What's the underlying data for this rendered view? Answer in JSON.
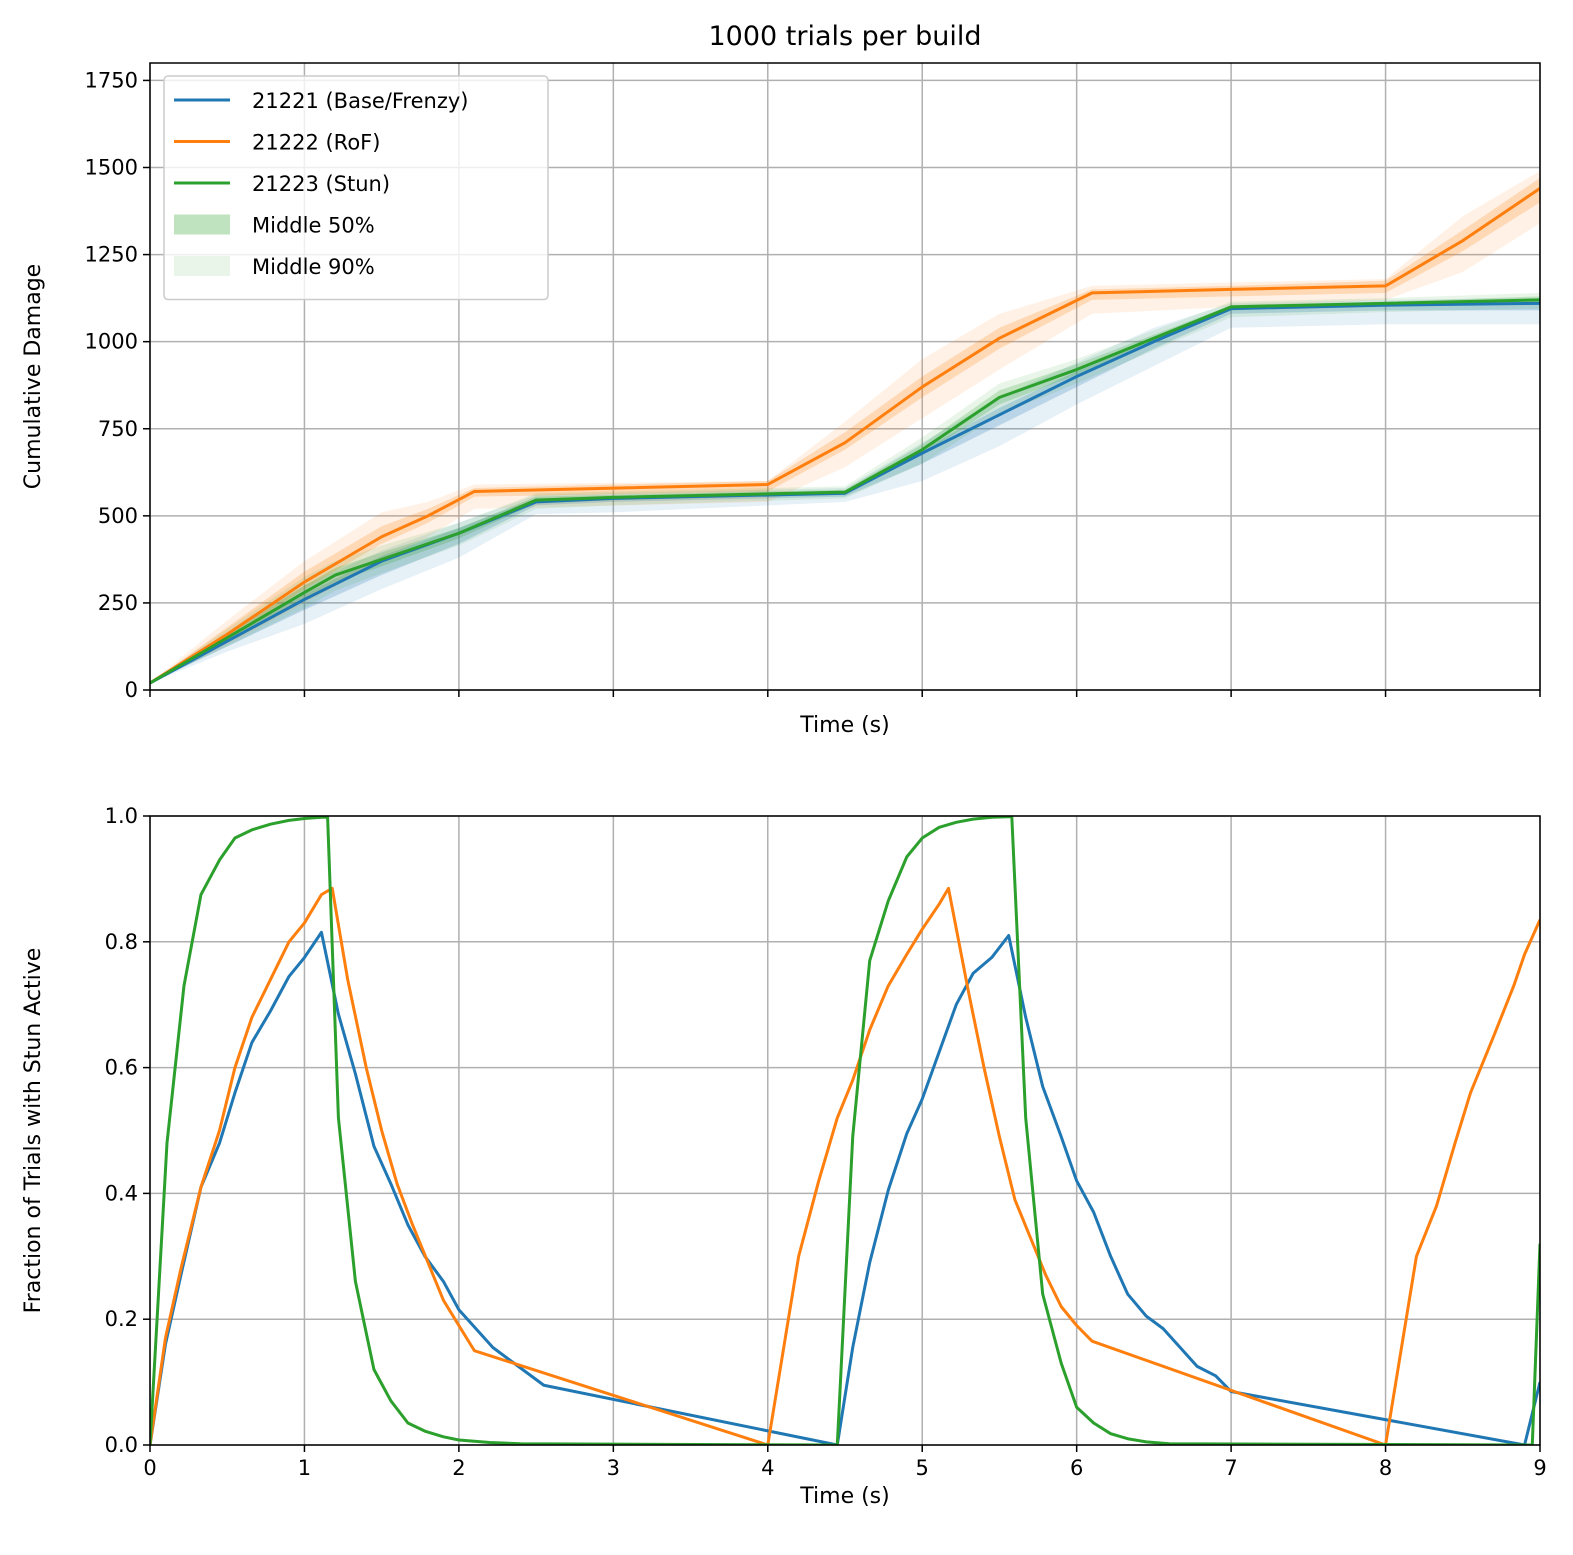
{
  "chart_data": [
    {
      "type": "line",
      "title": "1000 trials per build",
      "xlabel": "Time (s)",
      "ylabel": "Cumulative Damage",
      "xlim": [
        0,
        9
      ],
      "ylim": [
        0,
        1800
      ],
      "xticks": [
        0,
        1,
        2,
        3,
        4,
        5,
        6,
        7,
        8,
        9
      ],
      "yticks": [
        0,
        250,
        500,
        750,
        1000,
        1250,
        1500,
        1750
      ],
      "ytick_labels": [
        "0",
        "250",
        "500",
        "750",
        "1000",
        "1250",
        "1500",
        "1750"
      ],
      "show_xtick_labels": false,
      "grid": true,
      "legend_position": "upper-left",
      "legend": [
        {
          "label": "21221 (Base/Frenzy)",
          "kind": "line",
          "color": "#1f77b4"
        },
        {
          "label": "21222 (RoF)",
          "kind": "line",
          "color": "#ff7f0e"
        },
        {
          "label": "21223 (Stun)",
          "kind": "line",
          "color": "#2ca02c"
        },
        {
          "label": "Middle 50%",
          "kind": "band50",
          "color": "#2ca02c"
        },
        {
          "label": "Middle 90%",
          "kind": "band90",
          "color": "#2ca02c"
        }
      ],
      "series": [
        {
          "name": "21221 (Base/Frenzy)",
          "color": "#1f77b4",
          "x": [
            0,
            0.5,
            1.0,
            1.5,
            2.0,
            2.5,
            3.0,
            4.5,
            5.0,
            5.5,
            6.0,
            6.5,
            7.0,
            8.0,
            9.0
          ],
          "y": [
            20,
            140,
            260,
            370,
            450,
            540,
            550,
            565,
            680,
            790,
            900,
            1000,
            1095,
            1105,
            1110
          ],
          "band50": [
            [
              20,
              20
            ],
            [
              125,
              150
            ],
            [
              230,
              275
            ],
            [
              330,
              385
            ],
            [
              420,
              465
            ],
            [
              530,
              550
            ],
            [
              540,
              555
            ],
            [
              555,
              570
            ],
            [
              650,
              690
            ],
            [
              760,
              810
            ],
            [
              870,
              915
            ],
            [
              980,
              1015
            ],
            [
              1080,
              1100
            ],
            [
              1090,
              1110
            ],
            [
              1090,
              1115
            ]
          ],
          "band90": [
            [
              20,
              20
            ],
            [
              110,
              165
            ],
            [
              190,
              300
            ],
            [
              290,
              400
            ],
            [
              380,
              480
            ],
            [
              505,
              560
            ],
            [
              510,
              565
            ],
            [
              540,
              580
            ],
            [
              600,
              710
            ],
            [
              700,
              840
            ],
            [
              820,
              940
            ],
            [
              930,
              1040
            ],
            [
              1040,
              1110
            ],
            [
              1050,
              1120
            ],
            [
              1050,
              1125
            ]
          ]
        },
        {
          "name": "21222 (RoF)",
          "color": "#ff7f0e",
          "x": [
            0,
            0.5,
            1.0,
            1.5,
            1.8,
            2.1,
            4.0,
            4.5,
            5.0,
            5.5,
            6.1,
            7.0,
            8.0,
            8.5,
            9.0
          ],
          "y": [
            20,
            160,
            310,
            440,
            500,
            570,
            590,
            710,
            870,
            1010,
            1140,
            1150,
            1160,
            1290,
            1440
          ],
          "band50": [
            [
              20,
              20
            ],
            [
              150,
              180
            ],
            [
              290,
              340
            ],
            [
              420,
              470
            ],
            [
              480,
              520
            ],
            [
              555,
              580
            ],
            [
              570,
              600
            ],
            [
              690,
              740
            ],
            [
              840,
              900
            ],
            [
              980,
              1040
            ],
            [
              1120,
              1150
            ],
            [
              1130,
              1160
            ],
            [
              1140,
              1175
            ],
            [
              1260,
              1320
            ],
            [
              1400,
              1470
            ]
          ],
          "band90": [
            [
              20,
              20
            ],
            [
              130,
              200
            ],
            [
              250,
              370
            ],
            [
              370,
              510
            ],
            [
              440,
              540
            ],
            [
              520,
              590
            ],
            [
              540,
              600
            ],
            [
              640,
              770
            ],
            [
              780,
              950
            ],
            [
              920,
              1080
            ],
            [
              1080,
              1160
            ],
            [
              1100,
              1170
            ],
            [
              1120,
              1180
            ],
            [
              1200,
              1360
            ],
            [
              1340,
              1490
            ]
          ]
        },
        {
          "name": "21223 (Stun)",
          "color": "#2ca02c",
          "x": [
            0,
            0.5,
            1.0,
            1.2,
            1.5,
            2.0,
            2.5,
            3.0,
            4.5,
            5.0,
            5.5,
            6.0,
            7.0,
            8.0,
            9.0
          ],
          "y": [
            20,
            150,
            280,
            330,
            375,
            450,
            545,
            553,
            568,
            690,
            840,
            920,
            1100,
            1110,
            1120
          ],
          "band50": [
            [
              20,
              20
            ],
            [
              140,
              160
            ],
            [
              260,
              300
            ],
            [
              310,
              350
            ],
            [
              355,
              395
            ],
            [
              435,
              465
            ],
            [
              535,
              555
            ],
            [
              545,
              560
            ],
            [
              560,
              575
            ],
            [
              675,
              705
            ],
            [
              820,
              860
            ],
            [
              905,
              935
            ],
            [
              1090,
              1105
            ],
            [
              1100,
              1115
            ],
            [
              1110,
              1130
            ]
          ],
          "band90": [
            [
              20,
              20
            ],
            [
              125,
              175
            ],
            [
              235,
              325
            ],
            [
              285,
              370
            ],
            [
              335,
              415
            ],
            [
              415,
              480
            ],
            [
              520,
              565
            ],
            [
              530,
              570
            ],
            [
              550,
              585
            ],
            [
              650,
              725
            ],
            [
              790,
              880
            ],
            [
              880,
              950
            ],
            [
              1070,
              1115
            ],
            [
              1085,
              1125
            ],
            [
              1095,
              1140
            ]
          ]
        }
      ]
    },
    {
      "type": "line",
      "title": "",
      "xlabel": "Time (s)",
      "ylabel": "Fraction of Trials with Stun Active",
      "xlim": [
        0,
        9
      ],
      "ylim": [
        0,
        1
      ],
      "xticks": [
        0,
        1,
        2,
        3,
        4,
        5,
        6,
        7,
        8,
        9
      ],
      "xtick_labels": [
        "0",
        "1",
        "2",
        "3",
        "4",
        "5",
        "6",
        "7",
        "8",
        "9"
      ],
      "yticks": [
        0.0,
        0.2,
        0.4,
        0.6,
        0.8,
        1.0
      ],
      "ytick_labels": [
        "0.0",
        "0.2",
        "0.4",
        "0.6",
        "0.8",
        "1.0"
      ],
      "grid": true,
      "series": [
        {
          "name": "21221 (Base/Frenzy)",
          "color": "#1f77b4",
          "x": [
            0,
            0.1,
            0.2,
            0.33,
            0.45,
            0.55,
            0.66,
            0.78,
            0.9,
            1.0,
            1.11,
            1.22,
            1.33,
            1.45,
            1.56,
            1.67,
            1.78,
            1.9,
            2.0,
            2.22,
            2.55,
            4.45,
            4.55,
            4.66,
            4.78,
            4.9,
            5.0,
            5.11,
            5.22,
            5.33,
            5.45,
            5.56,
            5.67,
            5.78,
            5.9,
            6.0,
            6.11,
            6.22,
            6.33,
            6.45,
            6.56,
            6.67,
            6.78,
            6.9,
            7.0,
            8.9,
            9.0
          ],
          "y": [
            0,
            0.16,
            0.27,
            0.41,
            0.48,
            0.56,
            0.64,
            0.69,
            0.745,
            0.775,
            0.815,
            0.685,
            0.59,
            0.475,
            0.415,
            0.35,
            0.3,
            0.26,
            0.215,
            0.155,
            0.095,
            0,
            0.155,
            0.29,
            0.405,
            0.495,
            0.55,
            0.625,
            0.7,
            0.75,
            0.775,
            0.81,
            0.68,
            0.57,
            0.49,
            0.42,
            0.37,
            0.3,
            0.24,
            0.205,
            0.185,
            0.155,
            0.125,
            0.11,
            0.085,
            0,
            0.1
          ]
        },
        {
          "name": "21222 (RoF)",
          "color": "#ff7f0e",
          "x": [
            0,
            0.1,
            0.2,
            0.33,
            0.45,
            0.55,
            0.66,
            0.78,
            0.9,
            1.0,
            1.11,
            1.18,
            1.28,
            1.4,
            1.5,
            1.6,
            1.7,
            1.8,
            1.9,
            2.0,
            2.1,
            4.0,
            4.1,
            4.2,
            4.33,
            4.45,
            4.55,
            4.66,
            4.78,
            4.9,
            5.0,
            5.11,
            5.17,
            5.3,
            5.4,
            5.5,
            5.6,
            5.7,
            5.8,
            5.9,
            6.0,
            6.1,
            8.0,
            8.1,
            8.2,
            8.33,
            8.45,
            8.55,
            8.7,
            8.83,
            8.9,
            9.0
          ],
          "y": [
            0,
            0.17,
            0.28,
            0.41,
            0.5,
            0.6,
            0.68,
            0.74,
            0.8,
            0.83,
            0.875,
            0.885,
            0.74,
            0.6,
            0.5,
            0.415,
            0.35,
            0.29,
            0.23,
            0.19,
            0.15,
            0,
            0.15,
            0.3,
            0.42,
            0.52,
            0.58,
            0.66,
            0.73,
            0.78,
            0.82,
            0.86,
            0.885,
            0.72,
            0.6,
            0.49,
            0.39,
            0.33,
            0.27,
            0.22,
            0.19,
            0.165,
            0,
            0.15,
            0.3,
            0.38,
            0.48,
            0.56,
            0.65,
            0.73,
            0.78,
            0.835
          ]
        },
        {
          "name": "21223 (Stun)",
          "color": "#2ca02c",
          "x": [
            0,
            0.11,
            0.22,
            0.33,
            0.45,
            0.55,
            0.66,
            0.78,
            0.9,
            1.0,
            1.11,
            1.15,
            1.22,
            1.33,
            1.45,
            1.56,
            1.67,
            1.78,
            1.9,
            2.0,
            2.2,
            2.4,
            4.45,
            4.55,
            4.66,
            4.78,
            4.9,
            5.0,
            5.11,
            5.22,
            5.33,
            5.45,
            5.58,
            5.67,
            5.78,
            5.9,
            6.0,
            6.11,
            6.22,
            6.33,
            6.45,
            6.6,
            8.95,
            9.0
          ],
          "y": [
            0,
            0.48,
            0.73,
            0.875,
            0.93,
            0.965,
            0.978,
            0.987,
            0.993,
            0.996,
            0.998,
            0.998,
            0.52,
            0.26,
            0.12,
            0.07,
            0.035,
            0.022,
            0.013,
            0.008,
            0.004,
            0.002,
            0,
            0.49,
            0.77,
            0.865,
            0.935,
            0.965,
            0.982,
            0.99,
            0.995,
            0.998,
            0.999,
            0.52,
            0.24,
            0.13,
            0.06,
            0.035,
            0.018,
            0.01,
            0.005,
            0.002,
            0,
            0.32
          ]
        }
      ]
    }
  ]
}
